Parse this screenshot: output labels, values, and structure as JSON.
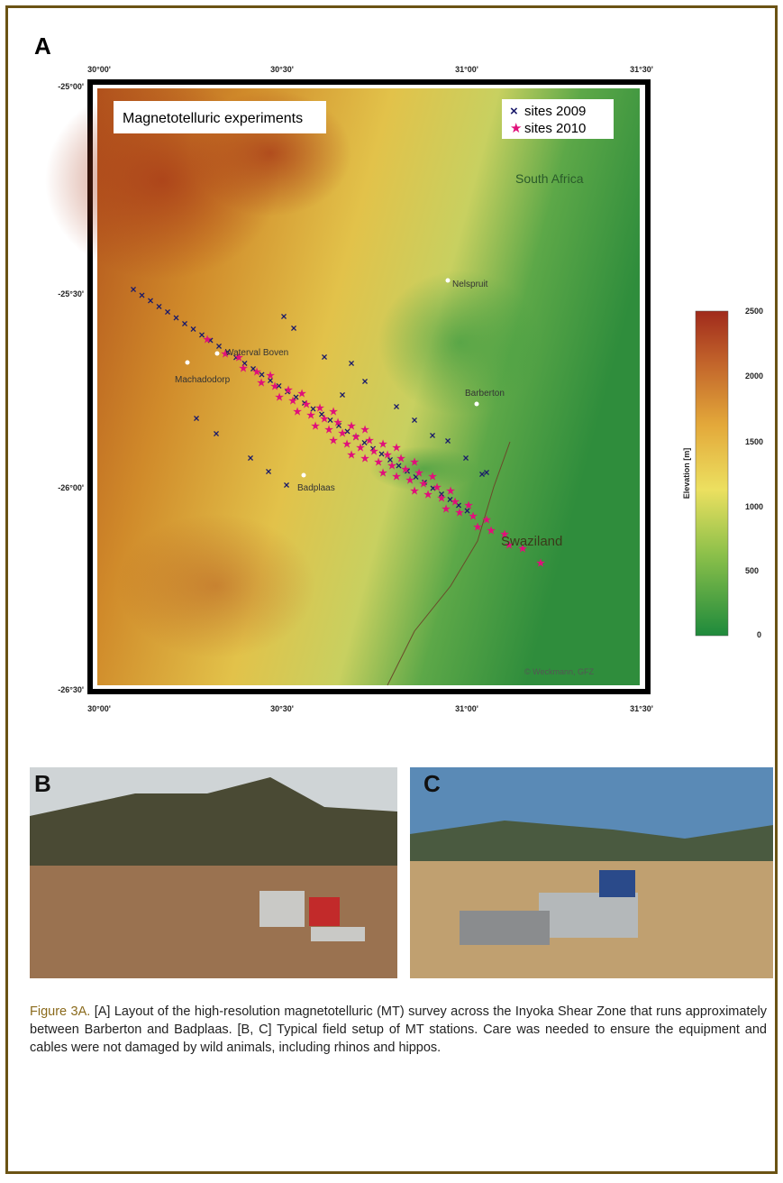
{
  "panels": {
    "a": "A",
    "b": "B",
    "c": "C"
  },
  "map": {
    "title": "Magnetotelluric experiments",
    "legend": [
      "sites 2009",
      "sites 2010"
    ],
    "places": [
      "South Africa",
      "Nelspruit",
      "Waterval Boven",
      "Machadodorp",
      "Barberton",
      "Badplaas",
      "Swaziland"
    ],
    "credit": "© Weckmann, GFZ",
    "lon_ticks": [
      "30°00'",
      "30°30'",
      "31°00'",
      "31°30'"
    ],
    "lat_ticks": [
      "-25°00'",
      "-25°30'",
      "-26°00'",
      "-26°30'"
    ],
    "colorbar": {
      "label": "Elevation [m]",
      "ticks": [
        "2500",
        "2000",
        "1500",
        "1000",
        "500",
        "0"
      ]
    }
  },
  "caption": {
    "label": "Figure 3A.",
    "text": "[A] Layout of the high-resolution magnetotelluric (MT) survey across the Inyoka Shear Zone that runs approximately between Barberton and Badplaas. [B, C] Typical field setup of MT stations. Care was needed to ensure the equipment and cables were not damaged by wild animals, including rhinos and hippos."
  }
}
